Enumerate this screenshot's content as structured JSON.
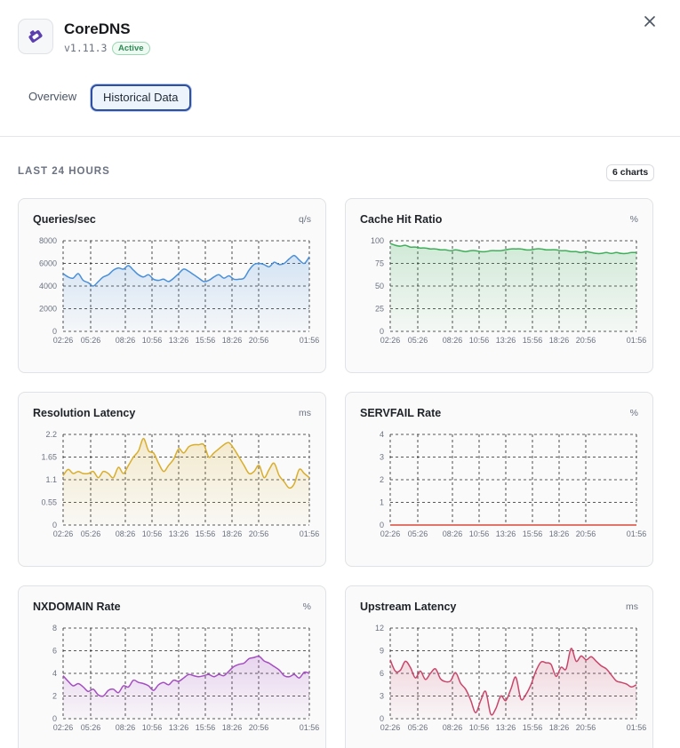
{
  "app": {
    "name": "CoreDNS",
    "version": "v1.11.3",
    "status": "Active",
    "icon": "puzzle-plugin-icon"
  },
  "tabs": [
    {
      "label": "Overview",
      "active": false
    },
    {
      "label": "Historical Data",
      "active": true
    }
  ],
  "section": {
    "title": "LAST 24 HOURS",
    "count_label": "6 charts"
  },
  "colors": {
    "accent": "#2f4fa3",
    "status_green": "#2f8a55"
  },
  "chart_data": [
    {
      "type": "area",
      "title": "Queries/sec",
      "unit": "q/s",
      "color": "#4a90d9",
      "x_ticks": [
        "02:26",
        "05:26",
        "08:26",
        "10:56",
        "13:26",
        "15:56",
        "18:26",
        "20:56",
        "01:56"
      ],
      "y_ticks": [
        "0",
        "2000",
        "4000",
        "6000",
        "8000"
      ],
      "ylim": [
        0,
        8000
      ],
      "values": [
        5100,
        4800,
        4700,
        5100,
        4500,
        4300,
        4000,
        4400,
        4800,
        5000,
        5400,
        5600,
        5500,
        5800,
        5400,
        5000,
        4800,
        5000,
        4600,
        4500,
        4600,
        4400,
        4700,
        5100,
        5500,
        5300,
        5000,
        4700,
        4400,
        4500,
        4800,
        5000,
        4700,
        4900,
        4600,
        4600,
        4700,
        5400,
        5900,
        6000,
        5900,
        5700,
        6100,
        5900,
        6000,
        6400,
        6700,
        6300,
        6000,
        6600
      ]
    },
    {
      "type": "area",
      "title": "Cache Hit Ratio",
      "unit": "%",
      "color": "#3fae5a",
      "x_ticks": [
        "02:26",
        "05:26",
        "08:26",
        "10:56",
        "13:26",
        "15:56",
        "18:26",
        "20:56",
        "01:56"
      ],
      "y_ticks": [
        "0",
        "25",
        "50",
        "75",
        "100"
      ],
      "ylim": [
        0,
        100
      ],
      "values": [
        97,
        95,
        94,
        95,
        93,
        93,
        92,
        92,
        91,
        91,
        90,
        90,
        89,
        90,
        89,
        88,
        89,
        89,
        88,
        88,
        89,
        89,
        89,
        90,
        91,
        91,
        91,
        90,
        90,
        91,
        91,
        90,
        90,
        90,
        89,
        89,
        88,
        88,
        87,
        88,
        87,
        86,
        86,
        87,
        86,
        87,
        86,
        86,
        87,
        87
      ]
    },
    {
      "type": "area",
      "title": "Resolution Latency",
      "unit": "ms",
      "color": "#d9ae2c",
      "x_ticks": [
        "02:26",
        "05:26",
        "08:26",
        "10:56",
        "13:26",
        "15:56",
        "18:26",
        "20:56",
        "01:56"
      ],
      "y_ticks": [
        "0",
        "0.55",
        "1.1",
        "1.65",
        "2.2"
      ],
      "ylim": [
        0,
        2.2
      ],
      "values": [
        1.2,
        1.35,
        1.25,
        1.3,
        1.25,
        1.25,
        1.3,
        1.15,
        1.3,
        1.25,
        1.15,
        1.4,
        1.25,
        1.45,
        1.65,
        1.8,
        2.1,
        1.8,
        1.75,
        1.5,
        1.3,
        1.45,
        1.6,
        1.85,
        1.75,
        1.9,
        1.95,
        1.95,
        1.95,
        1.65,
        1.75,
        1.85,
        1.95,
        2.0,
        1.85,
        1.65,
        1.45,
        1.25,
        1.3,
        1.45,
        1.15,
        1.35,
        1.5,
        1.2,
        1.05,
        0.9,
        1.0,
        1.35,
        1.25,
        1.15
      ]
    },
    {
      "type": "area",
      "title": "SERVFAIL Rate",
      "unit": "%",
      "color": "#d9483b",
      "x_ticks": [
        "02:26",
        "05:26",
        "08:26",
        "10:56",
        "13:26",
        "15:56",
        "18:26",
        "20:56",
        "01:56"
      ],
      "y_ticks": [
        "0",
        "1",
        "2",
        "3",
        "4"
      ],
      "ylim": [
        0,
        4
      ],
      "values": [
        0,
        0,
        0,
        0,
        0,
        0,
        0,
        0,
        0,
        0,
        0,
        0,
        0,
        0,
        0,
        0,
        0,
        0,
        0,
        0,
        0,
        0,
        0,
        0,
        0,
        0,
        0,
        0,
        0,
        0,
        0,
        0,
        0,
        0,
        0,
        0,
        0,
        0,
        0,
        0,
        0,
        0,
        0,
        0,
        0,
        0,
        0,
        0,
        0,
        0
      ]
    },
    {
      "type": "area",
      "title": "NXDOMAIN Rate",
      "unit": "%",
      "color": "#a54ec2",
      "x_ticks": [
        "02:26",
        "05:26",
        "08:26",
        "10:56",
        "13:26",
        "15:56",
        "18:26",
        "20:56",
        "01:56"
      ],
      "y_ticks": [
        "0",
        "2",
        "4",
        "6",
        "8"
      ],
      "ylim": [
        0,
        8
      ],
      "values": [
        3.8,
        3.3,
        2.9,
        3.1,
        2.8,
        2.4,
        2.6,
        2.1,
        2.0,
        2.5,
        2.6,
        2.3,
        2.9,
        2.8,
        3.4,
        3.2,
        3.1,
        2.9,
        2.5,
        3.0,
        3.2,
        3.0,
        3.4,
        3.3,
        3.6,
        3.9,
        3.8,
        3.7,
        3.8,
        3.9,
        3.7,
        3.9,
        3.8,
        4.2,
        4.6,
        4.8,
        4.9,
        5.3,
        5.4,
        5.5,
        5.1,
        4.9,
        4.6,
        4.3,
        3.8,
        3.7,
        3.9,
        3.6,
        4.1,
        4.0
      ]
    },
    {
      "type": "area",
      "title": "Upstream Latency",
      "unit": "ms",
      "color": "#c9466b",
      "x_ticks": [
        "02:26",
        "05:26",
        "08:26",
        "10:56",
        "13:26",
        "15:56",
        "18:26",
        "20:56",
        "01:56"
      ],
      "y_ticks": [
        "0",
        "3",
        "6",
        "9",
        "12"
      ],
      "ylim": [
        0,
        12
      ],
      "values": [
        7.8,
        6.3,
        6.4,
        7.6,
        6.8,
        5.4,
        6.3,
        5.2,
        6.0,
        6.6,
        5.3,
        4.9,
        5.0,
        6.1,
        4.7,
        3.9,
        2.5,
        0.8,
        2.4,
        3.6,
        0.6,
        1.3,
        3.0,
        2.4,
        3.9,
        5.5,
        2.6,
        3.2,
        4.5,
        6.3,
        7.5,
        7.4,
        7.2,
        5.6,
        6.8,
        6.6,
        9.3,
        7.6,
        8.3,
        7.8,
        8.2,
        7.6,
        7.0,
        6.6,
        5.8,
        5.0,
        4.8,
        4.6,
        4.2,
        4.5
      ]
    }
  ]
}
